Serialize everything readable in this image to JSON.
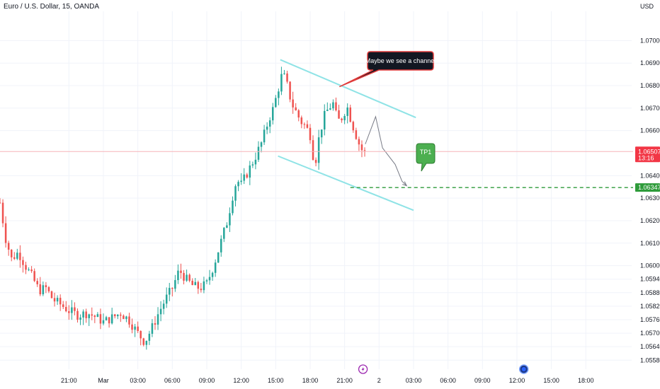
{
  "header": {
    "title": "Euro / U.S. Dollar, 15, OANDA"
  },
  "chart_data": {
    "type": "candlestick",
    "title": "Euro / U.S. Dollar, 15, OANDA",
    "y_unit": "USD",
    "ylim": [
      1.0554,
      1.0713
    ],
    "y_ticks": [
      "1.07000",
      "1.06900",
      "1.06800",
      "1.06700",
      "1.06600",
      "1.06400",
      "1.06300",
      "1.06200",
      "1.06100",
      "1.06000",
      "1.05940",
      "1.05880",
      "1.05820",
      "1.05760",
      "1.05700",
      "1.05640",
      "1.05580"
    ],
    "x_tick_labels": [
      {
        "label": "21:00",
        "t": 6.0
      },
      {
        "label": "Mar",
        "t": 9.0
      },
      {
        "label": "03:00",
        "t": 12.0
      },
      {
        "label": "06:00",
        "t": 15.0
      },
      {
        "label": "09:00",
        "t": 18.0
      },
      {
        "label": "12:00",
        "t": 21.0
      },
      {
        "label": "15:00",
        "t": 24.0
      },
      {
        "label": "18:00",
        "t": 27.0
      },
      {
        "label": "21:00",
        "t": 30.0
      },
      {
        "label": "2",
        "t": 33.0
      },
      {
        "label": "03:00",
        "t": 36.0
      },
      {
        "label": "06:00",
        "t": 39.0
      },
      {
        "label": "09:00",
        "t": 42.0
      },
      {
        "label": "12:00",
        "t": 45.0
      },
      {
        "label": "15:00",
        "t": 48.0
      },
      {
        "label": "18:00",
        "t": 51.0
      }
    ],
    "price_points": [
      [
        0.0,
        1.0628
      ],
      [
        0.5,
        1.0612
      ],
      [
        1.0,
        1.0603
      ],
      [
        1.6,
        1.0606
      ],
      [
        2.2,
        1.06
      ],
      [
        2.8,
        1.0595
      ],
      [
        3.4,
        1.0589
      ],
      [
        4.0,
        1.059
      ],
      [
        4.6,
        1.0585
      ],
      [
        5.2,
        1.0583
      ],
      [
        6.0,
        1.058
      ],
      [
        6.8,
        1.0578
      ],
      [
        7.6,
        1.0579
      ],
      [
        8.4,
        1.0577
      ],
      [
        9.0,
        1.0575
      ],
      [
        9.8,
        1.0577
      ],
      [
        10.5,
        1.0579
      ],
      [
        11.2,
        1.0576
      ],
      [
        12.0,
        1.057
      ],
      [
        12.6,
        1.0566
      ],
      [
        13.2,
        1.0572
      ],
      [
        13.8,
        1.0579
      ],
      [
        14.4,
        1.0585
      ],
      [
        15.0,
        1.059
      ],
      [
        15.6,
        1.0598
      ],
      [
        16.2,
        1.0594
      ],
      [
        16.8,
        1.0591
      ],
      [
        17.4,
        1.059
      ],
      [
        18.0,
        1.0592
      ],
      [
        18.6,
        1.06
      ],
      [
        19.2,
        1.061
      ],
      [
        19.8,
        1.062
      ],
      [
        20.2,
        1.063
      ],
      [
        20.6,
        1.0638
      ],
      [
        21.0,
        1.0636
      ],
      [
        21.6,
        1.0642
      ],
      [
        22.2,
        1.0648
      ],
      [
        22.8,
        1.0655
      ],
      [
        23.4,
        1.0665
      ],
      [
        23.8,
        1.067
      ],
      [
        24.2,
        1.0678
      ],
      [
        24.6,
        1.0686
      ],
      [
        25.0,
        1.068
      ],
      [
        25.4,
        1.0672
      ],
      [
        25.8,
        1.0668
      ],
      [
        26.2,
        1.0664
      ],
      [
        26.6,
        1.0662
      ],
      [
        27.0,
        1.0658
      ],
      [
        27.4,
        1.0644
      ],
      [
        27.8,
        1.0658
      ],
      [
        28.2,
        1.0666
      ],
      [
        28.6,
        1.067
      ],
      [
        29.0,
        1.0672
      ],
      [
        29.4,
        1.0664
      ],
      [
        29.8,
        1.0666
      ],
      [
        30.2,
        1.0671
      ],
      [
        30.6,
        1.0664
      ],
      [
        31.0,
        1.0658
      ],
      [
        31.4,
        1.0652
      ],
      [
        31.8,
        1.065
      ]
    ],
    "current_price": {
      "value": "1.06507",
      "countdown": "13:16"
    },
    "annotations": {
      "callout": "Maybe we see a channel",
      "target_label": "TP1",
      "target_price": "1.06347"
    }
  },
  "colors": {
    "up": "#26a69a",
    "down": "#ef5350",
    "channel": "#8fe3e6",
    "target_line": "#2e9b3a",
    "tp_badge": "#4caf50",
    "callout": "#131722",
    "callout_border": "#e03b3b",
    "price_tag": "#f23645",
    "grid": "#f0f3fa"
  },
  "markers": [
    {
      "icon": "lightning-icon",
      "t": 31.6
    },
    {
      "icon": "calendar-event-icon",
      "t": 45.6
    }
  ]
}
